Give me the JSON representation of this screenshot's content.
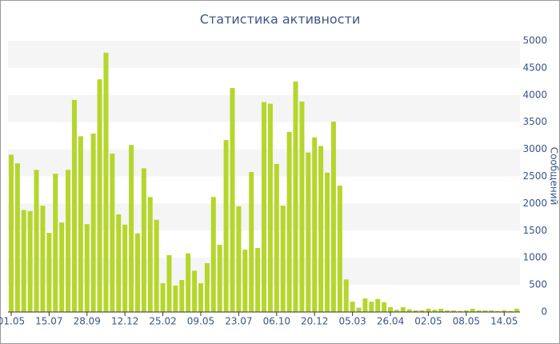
{
  "chart_data": {
    "type": "bar",
    "title": "Статистика активности",
    "y_label": "Сообщений",
    "categories": [
      "01.05",
      null,
      null,
      null,
      null,
      null,
      "15.07",
      null,
      null,
      null,
      null,
      null,
      "28.09",
      null,
      null,
      null,
      null,
      null,
      "12.12",
      null,
      null,
      null,
      null,
      null,
      "25.02",
      null,
      null,
      null,
      null,
      null,
      "09.05",
      null,
      null,
      null,
      null,
      null,
      "23.07",
      null,
      null,
      null,
      null,
      null,
      "06.10",
      null,
      null,
      null,
      null,
      null,
      "20.12",
      null,
      null,
      null,
      null,
      null,
      "05.03",
      null,
      null,
      null,
      null,
      null,
      "26.04",
      null,
      null,
      null,
      null,
      null,
      "02.05",
      null,
      null,
      null,
      null,
      null,
      "08.05",
      null,
      null,
      null,
      null,
      null,
      "14.05",
      null,
      null
    ],
    "values": [
      2900,
      2740,
      1880,
      1860,
      2620,
      1960,
      1460,
      2550,
      1650,
      2620,
      3910,
      3240,
      1620,
      3290,
      4290,
      4780,
      2920,
      1800,
      1610,
      3080,
      1450,
      2650,
      2120,
      1700,
      530,
      1050,
      490,
      590,
      1080,
      760,
      530,
      900,
      2120,
      1240,
      3170,
      4130,
      1950,
      1150,
      2580,
      1180,
      3870,
      3840,
      2730,
      1960,
      3320,
      4250,
      3880,
      2940,
      3220,
      3060,
      2570,
      3510,
      2330,
      600,
      190,
      80,
      250,
      190,
      240,
      180,
      90,
      40,
      90,
      50,
      30,
      30,
      60,
      40,
      60,
      30,
      30,
      20,
      30,
      60,
      30,
      30,
      30,
      20,
      30,
      20,
      60
    ],
    "color": "#b5d62c",
    "ylim": [
      0,
      5000
    ],
    "yticks": [
      0,
      500,
      1000,
      1500,
      2000,
      2500,
      3000,
      3500,
      4000,
      4500,
      5000
    ],
    "grid": true,
    "y_axis_side": "right"
  }
}
